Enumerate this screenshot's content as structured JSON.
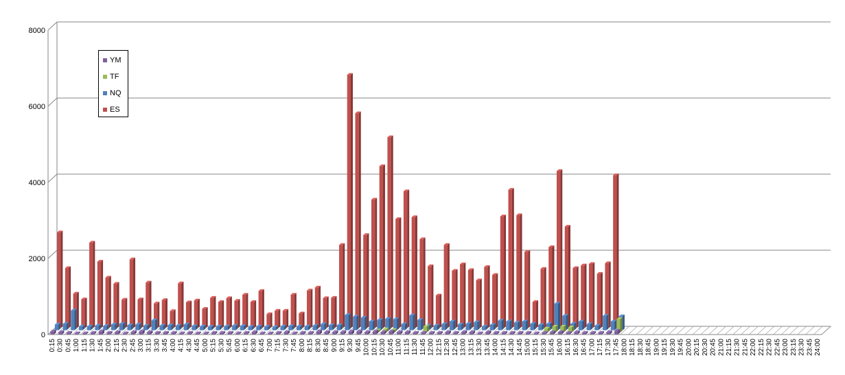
{
  "chart_data": {
    "type": "bar",
    "three_d": true,
    "ylim": [
      0,
      8000
    ],
    "yticks": [
      0,
      2000,
      4000,
      6000,
      8000
    ],
    "grid": true,
    "legend_position": "top-left",
    "categories": [
      "0:15",
      "0:30",
      "0:45",
      "1:00",
      "1:15",
      "1:30",
      "1:45",
      "2:00",
      "2:15",
      "2:30",
      "2:45",
      "3:00",
      "3:15",
      "3:30",
      "3:45",
      "4:00",
      "4:15",
      "4:30",
      "4:45",
      "5:00",
      "5:15",
      "5:30",
      "5:45",
      "6:00",
      "6:15",
      "6:30",
      "6:45",
      "7:00",
      "7:15",
      "7:30",
      "7:45",
      "8:00",
      "8:15",
      "8:30",
      "8:45",
      "9:00",
      "9:15",
      "9:30",
      "9:45",
      "10:00",
      "10:15",
      "10:30",
      "10:45",
      "11:00",
      "11:15",
      "11:30",
      "11:45",
      "12:00",
      "12:15",
      "12:30",
      "12:45",
      "13:00",
      "13:15",
      "13:30",
      "13:45",
      "14:00",
      "14:15",
      "14:30",
      "14:45",
      "15:00",
      "15:15",
      "15:30",
      "15:45",
      "16:00",
      "16:15",
      "16:30",
      "16:45",
      "17:00",
      "17:15",
      "17:30",
      "17:45",
      "18:00",
      "18:15",
      "18:30",
      "18:45",
      "19:00",
      "19:15",
      "19:30",
      "19:45",
      "20:00",
      "20:15",
      "20:30",
      "20:45",
      "21:00",
      "21:15",
      "21:30",
      "21:45",
      "22:00",
      "22:15",
      "22:30",
      "22:45",
      "23:00",
      "23:15",
      "23:30",
      "23:45",
      "24:00"
    ],
    "series": [
      {
        "name": "YM",
        "color": "#7E60A0",
        "values": [
          80,
          60,
          40,
          30,
          30,
          40,
          80,
          40,
          60,
          30,
          60,
          80,
          60,
          40,
          40,
          40,
          30,
          40,
          30,
          30,
          40,
          40,
          40,
          30,
          40,
          60,
          30,
          30,
          40,
          60,
          30,
          40,
          40,
          80,
          60,
          60,
          60,
          80,
          80,
          60,
          80,
          60,
          80,
          60,
          60,
          40,
          40,
          40,
          40,
          60,
          40,
          60,
          60,
          30,
          60,
          40,
          40,
          40,
          40,
          40,
          30,
          40,
          60,
          60,
          40,
          60,
          40,
          40,
          40,
          60,
          100,
          0,
          0,
          0,
          0,
          0,
          0,
          0,
          0,
          0,
          0,
          0,
          0,
          0,
          0,
          0,
          0,
          0,
          0,
          0,
          0,
          0,
          0,
          0,
          0,
          0
        ]
      },
      {
        "name": "TF",
        "color": "#9BBB59",
        "values": [
          0,
          0,
          0,
          0,
          0,
          0,
          0,
          0,
          0,
          0,
          0,
          0,
          0,
          0,
          0,
          0,
          0,
          0,
          0,
          0,
          0,
          0,
          0,
          0,
          0,
          0,
          0,
          0,
          0,
          0,
          0,
          0,
          0,
          0,
          0,
          0,
          0,
          0,
          0,
          0,
          50,
          80,
          60,
          0,
          0,
          0,
          150,
          0,
          0,
          0,
          0,
          0,
          0,
          0,
          0,
          0,
          0,
          0,
          0,
          0,
          0,
          100,
          150,
          150,
          130,
          0,
          0,
          0,
          0,
          0,
          350,
          0,
          0,
          0,
          0,
          0,
          0,
          0,
          0,
          0,
          0,
          0,
          0,
          0,
          0,
          0,
          0,
          0,
          0,
          0,
          0,
          0,
          0,
          0,
          0,
          0
        ]
      },
      {
        "name": "NQ",
        "color": "#4F81BD",
        "values": [
          150,
          170,
          520,
          100,
          100,
          120,
          110,
          150,
          170,
          130,
          150,
          120,
          260,
          120,
          130,
          120,
          150,
          110,
          100,
          90,
          100,
          100,
          120,
          110,
          90,
          100,
          90,
          80,
          100,
          110,
          100,
          100,
          120,
          160,
          130,
          130,
          400,
          360,
          330,
          230,
          270,
          300,
          290,
          160,
          390,
          270,
          120,
          120,
          160,
          230,
          150,
          170,
          210,
          100,
          140,
          250,
          230,
          200,
          230,
          170,
          140,
          170,
          700,
          380,
          170,
          230,
          160,
          120,
          380,
          230,
          370,
          0,
          0,
          0,
          0,
          0,
          0,
          0,
          0,
          0,
          0,
          0,
          0,
          0,
          0,
          0,
          0,
          0,
          0,
          0,
          0,
          0,
          0,
          0,
          0,
          0
        ]
      },
      {
        "name": "ES",
        "color": "#C0504D",
        "values": [
          2520,
          1580,
          910,
          760,
          2250,
          1750,
          1330,
          1170,
          750,
          1810,
          760,
          1200,
          650,
          740,
          450,
          1180,
          680,
          730,
          510,
          800,
          690,
          790,
          720,
          880,
          690,
          980,
          370,
          460,
          460,
          880,
          390,
          990,
          1070,
          790,
          800,
          2190,
          6660,
          5650,
          2450,
          3380,
          4260,
          5020,
          2870,
          3600,
          2920,
          2340,
          1630,
          860,
          2190,
          1510,
          1680,
          1530,
          1260,
          1610,
          1400,
          2940,
          3640,
          2970,
          2010,
          690,
          1560,
          2130,
          4130,
          2670,
          1580,
          1650,
          1690,
          1430,
          1710,
          4020,
          0,
          0,
          0,
          0,
          0,
          0,
          0,
          0,
          0,
          0,
          0,
          0,
          0,
          0,
          0,
          0,
          0,
          0,
          0,
          0,
          0,
          0,
          0,
          0,
          0,
          0
        ]
      }
    ]
  }
}
